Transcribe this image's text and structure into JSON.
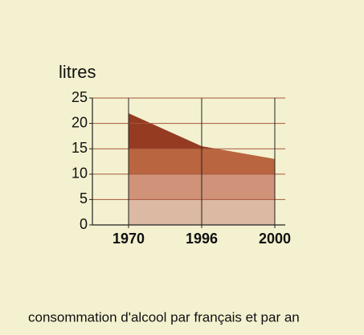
{
  "chart_data": {
    "type": "area",
    "title": "consommation d'alcool par français et par an",
    "y_label": "litres",
    "categories": [
      "1970",
      "1996",
      "2000"
    ],
    "values": [
      22,
      15.5,
      13
    ],
    "ylim": [
      0,
      25
    ],
    "yticks": [
      0,
      5,
      10,
      15,
      20,
      25
    ],
    "band_colors": [
      "#dcb9a2",
      "#d0937a",
      "#b9653f",
      "#943b22",
      "#943b22"
    ],
    "grid": true,
    "grid_color": "#a5563c"
  }
}
